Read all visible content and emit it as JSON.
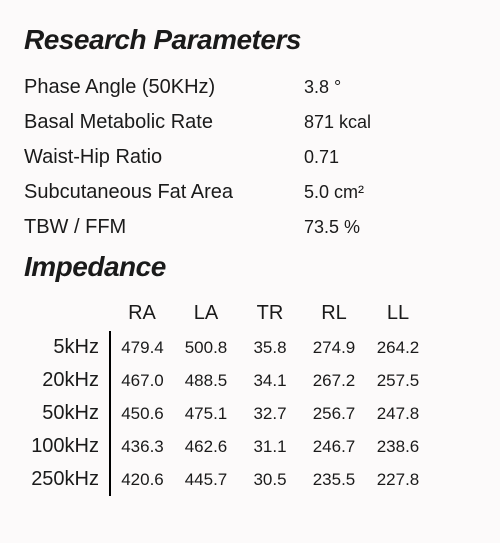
{
  "titles": {
    "research": "Research Parameters",
    "impedance": "Impedance"
  },
  "params": [
    {
      "label": "Phase Angle (50KHz)",
      "value": "3.8 °"
    },
    {
      "label": "Basal Metabolic Rate",
      "value": "871 kcal"
    },
    {
      "label": "Waist-Hip Ratio",
      "value": "0.71"
    },
    {
      "label": "Subcutaneous Fat Area",
      "value": "5.0 cm²"
    },
    {
      "label": "TBW / FFM",
      "value": "73.5 %"
    }
  ],
  "impedance": {
    "columns": [
      "RA",
      "LA",
      "TR",
      "RL",
      "LL"
    ],
    "rows": [
      {
        "freq": "5kHz",
        "values": [
          "479.4",
          "500.8",
          "35.8",
          "274.9",
          "264.2"
        ]
      },
      {
        "freq": "20kHz",
        "values": [
          "467.0",
          "488.5",
          "34.1",
          "267.2",
          "257.5"
        ]
      },
      {
        "freq": "50kHz",
        "values": [
          "450.6",
          "475.1",
          "32.7",
          "256.7",
          "247.8"
        ]
      },
      {
        "freq": "100kHz",
        "values": [
          "436.3",
          "462.6",
          "31.1",
          "246.7",
          "238.6"
        ]
      },
      {
        "freq": "250kHz",
        "values": [
          "420.6",
          "445.7",
          "30.5",
          "235.5",
          "227.8"
        ]
      }
    ]
  },
  "style": {
    "background_color": "#fcfafa",
    "text_color": "#1a1a1a",
    "title_fontsize": 28,
    "title_fontweight": 900,
    "title_fontstyle": "italic",
    "label_fontsize": 20,
    "value_fontsize": 18,
    "table_header_fontsize": 20,
    "table_cell_fontsize": 17,
    "border_color": "#000000",
    "border_width": 2,
    "freq_col_width": 86,
    "data_col_width": 64
  }
}
